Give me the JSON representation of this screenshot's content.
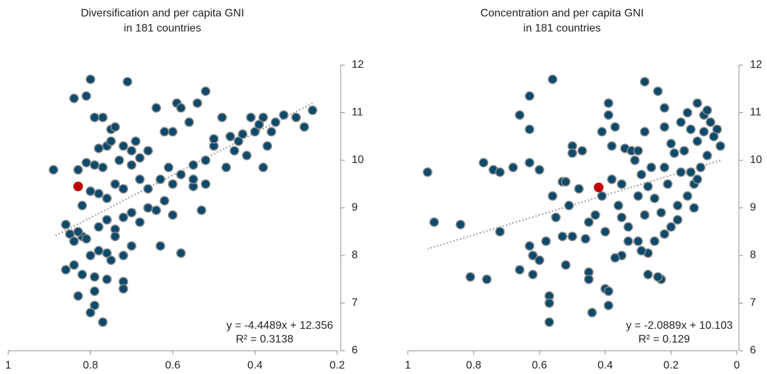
{
  "chart_data": [
    {
      "type": "scatter",
      "title": [
        "Diversification and per capita GNI",
        "in 181 countries"
      ],
      "xlim": [
        1,
        0.2
      ],
      "xticks": [
        1,
        0.8,
        0.6,
        0.4,
        0.2
      ],
      "ylim": [
        6,
        12
      ],
      "yticks": [
        6,
        7,
        8,
        9,
        10,
        11,
        12
      ],
      "series": [
        {
          "color": "#0d4a6b",
          "edgecolor": "#8c8c8c",
          "x": [
            0.89,
            0.84,
            0.81,
            0.8,
            0.79,
            0.77,
            0.71,
            0.75,
            0.74,
            0.69,
            0.7,
            0.72,
            0.73,
            0.76,
            0.78,
            0.79,
            0.81,
            0.83,
            0.64,
            0.62,
            0.59,
            0.58,
            0.54,
            0.52,
            0.56,
            0.6,
            0.48,
            0.46,
            0.44,
            0.41,
            0.38,
            0.35,
            0.33,
            0.3,
            0.28,
            0.26,
            0.36,
            0.4,
            0.42,
            0.45,
            0.5,
            0.52,
            0.55,
            0.58,
            0.6,
            0.63,
            0.66,
            0.68,
            0.7,
            0.72,
            0.74,
            0.76,
            0.78,
            0.8,
            0.82,
            0.86,
            0.85,
            0.84,
            0.82,
            0.83,
            0.78,
            0.76,
            0.74,
            0.72,
            0.7,
            0.68,
            0.66,
            0.64,
            0.62,
            0.6,
            0.55,
            0.53,
            0.58,
            0.63,
            0.7,
            0.72,
            0.75,
            0.78,
            0.8,
            0.84,
            0.86,
            0.82,
            0.79,
            0.76,
            0.72,
            0.72,
            0.79,
            0.83,
            0.79,
            0.8,
            0.77,
            0.38,
            0.47,
            0.52,
            0.55,
            0.68,
            0.66,
            0.61,
            0.81,
            0.76,
            0.74,
            0.77,
            0.75,
            0.5,
            0.43,
            0.37,
            0.39
          ],
          "values": [
            9.8,
            11.3,
            11.35,
            11.7,
            10.9,
            10.9,
            11.65,
            10.65,
            10.7,
            10.4,
            10.2,
            10.3,
            10.0,
            10.3,
            10.25,
            9.9,
            9.95,
            9.8,
            11.1,
            10.6,
            11.2,
            11.1,
            11.2,
            11.45,
            10.8,
            10.6,
            10.9,
            10.5,
            10.4,
            10.9,
            10.9,
            10.8,
            10.95,
            10.9,
            10.7,
            11.05,
            10.6,
            10.6,
            10.1,
            10.2,
            10.3,
            10.0,
            9.9,
            9.7,
            9.5,
            9.6,
            9.4,
            9.6,
            9.9,
            9.4,
            9.5,
            9.2,
            9.3,
            9.35,
            9.05,
            8.65,
            8.45,
            8.3,
            8.4,
            8.5,
            8.6,
            8.75,
            8.55,
            8.8,
            8.9,
            8.7,
            9.0,
            8.95,
            9.15,
            8.85,
            9.45,
            8.95,
            8.05,
            8.2,
            8.2,
            8.0,
            7.9,
            8.1,
            8.0,
            7.8,
            7.7,
            7.6,
            7.55,
            7.5,
            7.45,
            7.3,
            7.25,
            7.15,
            6.95,
            6.8,
            6.6,
            9.85,
            9.85,
            9.5,
            9.6,
            10.05,
            10.2,
            9.85,
            8.35,
            8.05,
            8.4,
            9.85,
            10.4,
            10.45,
            10.55,
            10.3,
            10.75
          ]
        },
        {
          "color": "#c00000",
          "edgecolor": "#c00000",
          "x": [
            0.83
          ],
          "values": [
            9.45
          ]
        }
      ],
      "trendline": {
        "slope": -4.4489,
        "intercept": 12.356,
        "color": "#a6a6a6",
        "label": "y = -4.4489x + 12.356",
        "r2_label": "R² = 0.3138"
      }
    },
    {
      "type": "scatter",
      "title": [
        "Concentration and per capita GNI",
        "in 181 countries"
      ],
      "xlim": [
        1,
        0
      ],
      "xticks": [
        1,
        0.8,
        0.6,
        0.4,
        0.2,
        0
      ],
      "ylim": [
        6,
        12
      ],
      "yticks": [
        6,
        7,
        8,
        9,
        10,
        11,
        12
      ],
      "series": [
        {
          "color": "#0d4a6b",
          "edgecolor": "#8c8c8c",
          "x": [
            0.94,
            0.92,
            0.84,
            0.81,
            0.76,
            0.77,
            0.74,
            0.72,
            0.72,
            0.68,
            0.66,
            0.63,
            0.63,
            0.63,
            0.62,
            0.63,
            0.62,
            0.66,
            0.6,
            0.56,
            0.58,
            0.57,
            0.57,
            0.57,
            0.55,
            0.53,
            0.52,
            0.52,
            0.5,
            0.5,
            0.47,
            0.51,
            0.5,
            0.46,
            0.45,
            0.45,
            0.44,
            0.43,
            0.41,
            0.4,
            0.39,
            0.39,
            0.37,
            0.38,
            0.41,
            0.4,
            0.39,
            0.39,
            0.36,
            0.35,
            0.33,
            0.34,
            0.32,
            0.3,
            0.28,
            0.28,
            0.31,
            0.29,
            0.27,
            0.25,
            0.23,
            0.24,
            0.22,
            0.22,
            0.2,
            0.19,
            0.17,
            0.17,
            0.15,
            0.14,
            0.12,
            0.12,
            0.1,
            0.08,
            0.06,
            0.09,
            0.11,
            0.13,
            0.15,
            0.18,
            0.2,
            0.22,
            0.23,
            0.24,
            0.27,
            0.27,
            0.29,
            0.3,
            0.33,
            0.35,
            0.37,
            0.35,
            0.38,
            0.45,
            0.48,
            0.53,
            0.6,
            0.56,
            0.25,
            0.18,
            0.13,
            0.05,
            0.07,
            0.1,
            0.09,
            0.12,
            0.16,
            0.14,
            0.21,
            0.22,
            0.26,
            0.28,
            0.3
          ],
          "values": [
            9.75,
            8.7,
            8.65,
            7.55,
            7.5,
            9.95,
            9.8,
            9.75,
            8.5,
            9.85,
            7.7,
            11.35,
            10.65,
            9.95,
            8.0,
            8.2,
            7.6,
            10.95,
            9.8,
            11.7,
            8.3,
            7.15,
            7.0,
            6.6,
            8.8,
            9.55,
            9.55,
            7.8,
            10.3,
            10.15,
            10.2,
            9.05,
            8.4,
            8.35,
            7.65,
            7.5,
            6.8,
            8.85,
            9.25,
            8.5,
            11.2,
            10.95,
            10.7,
            10.3,
            10.6,
            7.3,
            7.25,
            6.95,
            9.05,
            8.8,
            8.6,
            10.25,
            10.2,
            10.2,
            11.65,
            10.6,
            10.0,
            9.7,
            9.45,
            9.2,
            8.9,
            11.45,
            11.1,
            10.7,
            10.35,
            10.15,
            10.8,
            9.75,
            11.0,
            10.65,
            10.4,
            11.2,
            10.95,
            10.8,
            10.65,
            10.1,
            9.85,
            9.5,
            9.25,
            9.05,
            8.6,
            8.45,
            7.5,
            7.55,
            8.05,
            7.6,
            8.1,
            8.3,
            8.3,
            8.0,
            7.95,
            9.5,
            9.6,
            8.7,
            9.4,
            8.4,
            7.9,
            9.25,
            8.3,
            8.75,
            9.0,
            10.3,
            10.5,
            10.6,
            11.05,
            9.6,
            10.2,
            9.75,
            9.5,
            9.85,
            9.85,
            8.85,
            9.25
          ]
        },
        {
          "color": "#c00000",
          "edgecolor": "#c00000",
          "x": [
            0.42
          ],
          "values": [
            9.43
          ]
        }
      ],
      "trendline": {
        "slope": -2.0889,
        "intercept": 10.103,
        "color": "#a6a6a6",
        "label": "y = -2.0889x + 10.103",
        "r2_label": "R² = 0.129"
      }
    }
  ]
}
